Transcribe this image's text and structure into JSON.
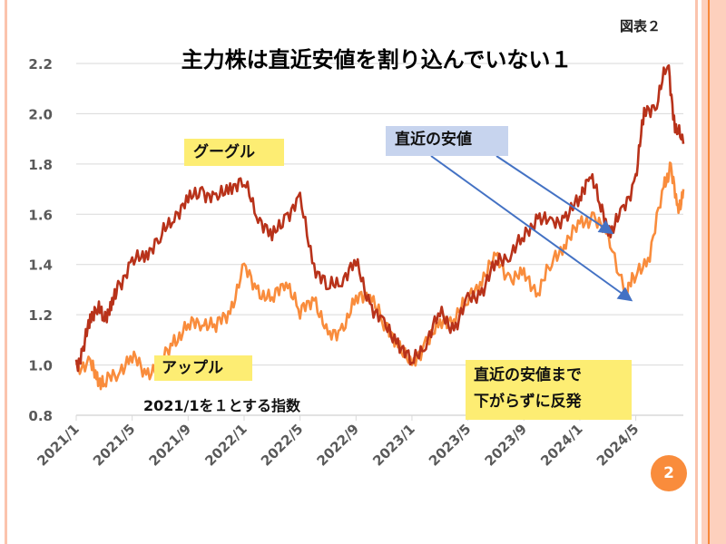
{
  "slide": {
    "figure_label": "図表２",
    "page_number": "2"
  },
  "chart_data": {
    "type": "line",
    "title": "主力株は直近安値を割り込んでいない１",
    "subtitle": "2021/1を１とする指数",
    "xlabel": "",
    "ylabel": "",
    "x_unit": "months since 2021/1",
    "xlim": [
      0,
      43.4
    ],
    "ylim": [
      0.8,
      2.2
    ],
    "yticks": [
      0.8,
      1.0,
      1.2,
      1.4,
      1.6,
      1.8,
      2.0,
      2.2
    ],
    "ytick_labels": [
      "0.8",
      "1.0",
      "1.2",
      "1.4",
      "1.6",
      "1.8",
      "2.0",
      "2.2"
    ],
    "xticks": [
      0,
      4,
      8,
      12,
      16,
      20,
      24,
      28,
      32,
      36,
      40
    ],
    "xtick_labels": [
      "2021/1",
      "2021/5",
      "2021/9",
      "2022/1",
      "2022/5",
      "2022/9",
      "2023/1",
      "2023/5",
      "2023/9",
      "2024/1",
      "2024/5"
    ],
    "grid": true,
    "series": [
      {
        "name": "グーグル",
        "color": "#b8321a",
        "x": [
          0,
          0.5,
          1,
          1.5,
          2,
          2.5,
          3,
          4,
          5,
          6,
          7,
          8,
          9,
          10,
          11,
          12,
          13,
          14,
          15,
          16,
          17,
          18,
          19,
          20,
          21,
          22,
          23,
          24,
          25,
          26,
          27,
          28,
          29,
          30,
          31,
          32,
          33,
          34,
          35,
          36,
          36.7,
          37.5,
          38.2,
          39,
          40,
          40.6,
          41.5,
          42.3,
          42.8,
          43.4
        ],
        "y": [
          1.0,
          1.05,
          1.2,
          1.22,
          1.2,
          1.22,
          1.32,
          1.4,
          1.45,
          1.5,
          1.6,
          1.65,
          1.7,
          1.65,
          1.72,
          1.72,
          1.6,
          1.5,
          1.6,
          1.65,
          1.4,
          1.3,
          1.35,
          1.4,
          1.25,
          1.15,
          1.1,
          1.0,
          1.1,
          1.2,
          1.15,
          1.25,
          1.3,
          1.4,
          1.45,
          1.5,
          1.6,
          1.55,
          1.6,
          1.65,
          1.78,
          1.62,
          1.53,
          1.6,
          1.75,
          2.0,
          2.05,
          2.2,
          1.95,
          1.88
        ]
      },
      {
        "name": "アップル",
        "color": "#f98c3c",
        "x": [
          0,
          1,
          1.5,
          2,
          3,
          4,
          5,
          6,
          7,
          8,
          9,
          10,
          11,
          12,
          13,
          14,
          15,
          16,
          17,
          18,
          19,
          20,
          21,
          22,
          23,
          24,
          25,
          26,
          27,
          28,
          29,
          30,
          31,
          32,
          33,
          34,
          35,
          36,
          37,
          38,
          39.3,
          40,
          41,
          42,
          42.5,
          43,
          43.4
        ],
        "y": [
          1.0,
          1.0,
          0.95,
          0.92,
          0.98,
          1.03,
          0.97,
          1.0,
          1.1,
          1.15,
          1.18,
          1.15,
          1.22,
          1.38,
          1.3,
          1.25,
          1.35,
          1.2,
          1.28,
          1.1,
          1.15,
          1.25,
          1.3,
          1.15,
          1.1,
          0.98,
          1.1,
          1.15,
          1.2,
          1.25,
          1.35,
          1.42,
          1.35,
          1.35,
          1.3,
          1.4,
          1.5,
          1.55,
          1.6,
          1.5,
          1.3,
          1.35,
          1.45,
          1.7,
          1.8,
          1.6,
          1.7
        ]
      }
    ],
    "annotations": [
      "グーグル",
      "アップル",
      "直近の安値",
      "直近の安値まで",
      "下がらずに反発"
    ]
  }
}
